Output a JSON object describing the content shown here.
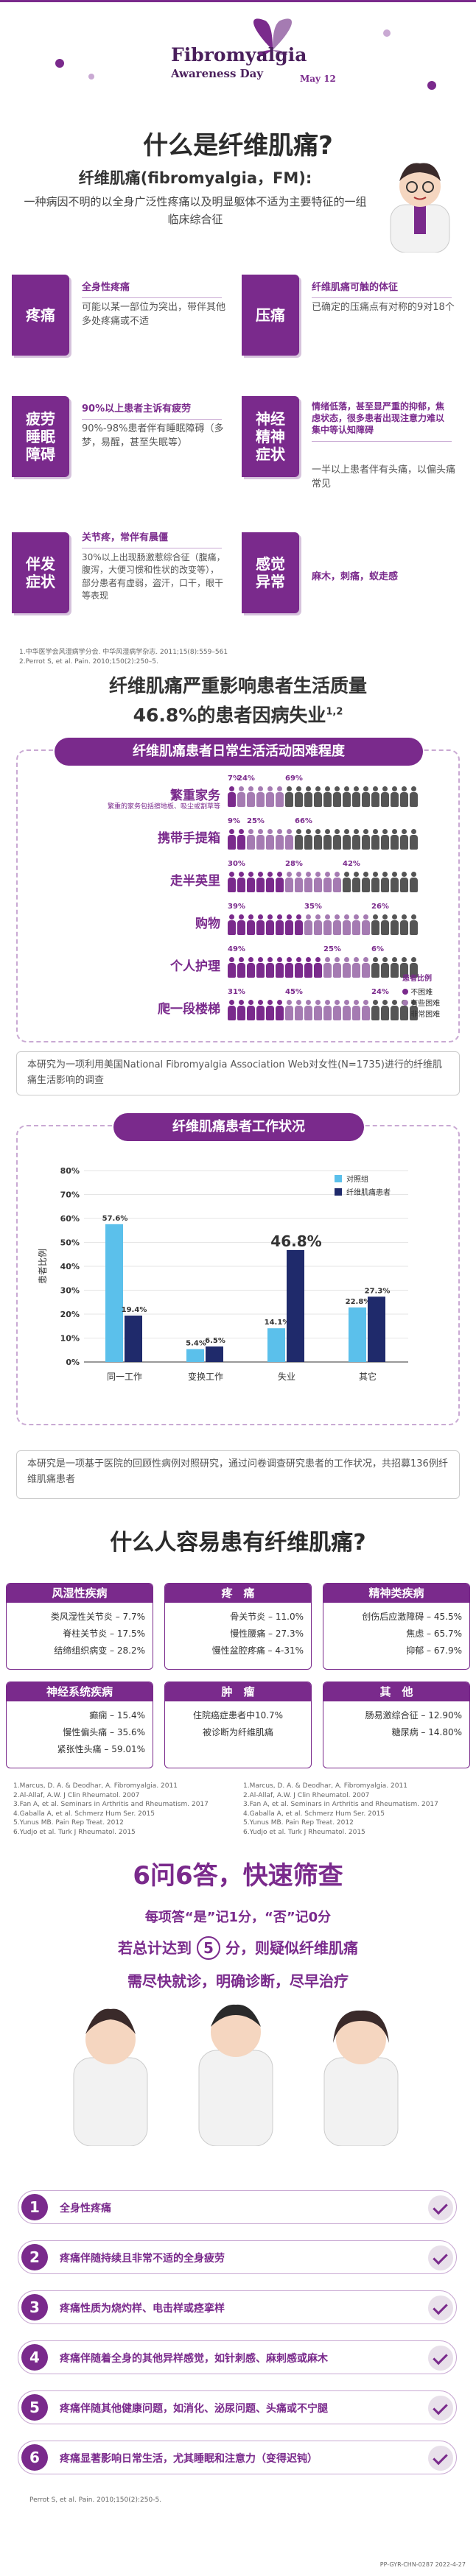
{
  "header": {
    "title": "Fibromyalgia",
    "subtitle": "Awareness Day",
    "date": "May 12"
  },
  "intro": {
    "heading": "什么是纤维肌痛?",
    "term": "纤维肌痛(fibromyalgia，FM):",
    "definition": "一种病因不明的以全身广泛性疼痛以及明显躯体不适为主要特征的一组临床综合征"
  },
  "symptoms": [
    {
      "label": "疼痛",
      "title": "全身性疼痛",
      "body": "可能以某一部位为突出，带伴其他多处疼痛或不适"
    },
    {
      "label": "压痛",
      "title": "纤维肌痛可触的体征",
      "body": "已确定的压痛点有对称的9对18个"
    },
    {
      "label": "疲劳\n睡眠\n障碍",
      "title": "90%以上患者主诉有疲劳",
      "body": "90%-98%患者伴有睡眠障碍（多梦，易醒，甚至失眠等）"
    },
    {
      "label": "神经\n精神\n症状",
      "title": "情绪低落，甚至显严重的抑郁，焦虑状态，很多患者出现注意力难以集中等认知障碍",
      "body": "一半以上患者伴有头痛，以偏头痛常见"
    },
    {
      "label": "伴发\n症状",
      "title": "关节疼，常伴有晨僵",
      "body": "30%以上出现肠激惹综合征（腹痛，腹泻，大便习惯和性状的改变等），部分患者有虚弱，盗汗，口干，眼干等表现"
    },
    {
      "label": "感觉\n异常",
      "title": "",
      "body": "麻木，刺痛，蚁走感"
    }
  ],
  "refs1": [
    "1.中华医学会风湿病学分会. 中华风湿病学杂志. 2011;15(8):559–561",
    "2.Perrot S, et al. Pain. 2010;150(2):250–5."
  ],
  "impact": {
    "headline1": "纤维肌痛严重影响患者生活质量",
    "headline2": "46.8%的患者因病失业",
    "sup": "1,2",
    "panel_title": "纤维肌痛患者日常生活活动困难程度",
    "activities": [
      {
        "name": "繁重家务",
        "note": "繁重的家务包括擦地板、吸尘或割草等",
        "v": [
          7,
          24,
          69
        ]
      },
      {
        "name": "携带手提箱",
        "note": "",
        "v": [
          9,
          25,
          66
        ]
      },
      {
        "name": "走半英里",
        "note": "",
        "v": [
          30,
          28,
          42
        ]
      },
      {
        "name": "购物",
        "note": "",
        "v": [
          39,
          35,
          26
        ]
      },
      {
        "name": "个人护理",
        "note": "",
        "v": [
          49,
          25,
          6
        ]
      },
      {
        "name": "爬一段楼梯",
        "note": "",
        "v": [
          31,
          45,
          24
        ]
      }
    ],
    "legend_title": "患者比例",
    "legend": [
      "不困难",
      "有些困难",
      "非常困难"
    ],
    "colors": [
      "#7a2a8c",
      "#a57bb2",
      "#555555"
    ],
    "note": "本研究为一项利用美国National Fibromyalgia Association Web对女性(N=1735)进行的纤维肌痛生活影响的调查"
  },
  "work": {
    "title": "纤维肌痛患者工作状况",
    "ylabel": "患者比例",
    "legend": [
      "对照组",
      "纤维肌痛患者"
    ],
    "note": "本研究是一项基于医院的回顾性病例对照研究，通过问卷调查研究患者的工作状况，共招募136例纤维肌痛患者"
  },
  "chart_data": {
    "type": "bar",
    "title": "纤维肌痛患者工作状况",
    "categories": [
      "同一工作",
      "变换工作",
      "失业",
      "其它"
    ],
    "series": [
      {
        "name": "对照组",
        "values": [
          57.6,
          5.4,
          14.1,
          22.8
        ]
      },
      {
        "name": "纤维肌痛患者",
        "values": [
          19.4,
          6.5,
          46.8,
          27.3
        ]
      }
    ],
    "ylabel": "患者比例",
    "ylim": [
      0,
      80
    ],
    "yticks": [
      "0%",
      "10%",
      "20%",
      "30%",
      "40%",
      "50%",
      "60%",
      "70%",
      "80%"
    ],
    "labels": [
      [
        "57.6%",
        "19.4%"
      ],
      [
        "5.4%",
        "6.5%"
      ],
      [
        "14.1%",
        "46.8%"
      ],
      [
        "22.8%",
        "27.3%"
      ]
    ]
  },
  "risk": {
    "heading": "什么人容易患有纤维肌痛?",
    "groups": [
      {
        "title": "风湿性疾病",
        "items": [
          "类风湿性关节炎 – 7.7%",
          "脊柱关节炎 – 17.5%",
          "结缔组织病变 – 28.2%"
        ]
      },
      {
        "title": "疼　痛",
        "items": [
          "骨关节炎 – 11.0%",
          "慢性腰痛 – 27.3%",
          "慢性盆腔疼痛 – 4-31%"
        ]
      },
      {
        "title": "精神类疾病",
        "items": [
          "创伤后应激障碍 – 45.5%",
          "焦虑 – 65.7%",
          "抑郁 – 67.9%"
        ]
      },
      {
        "title": "神经系统疾病",
        "items": [
          "癫痫 – 15.4%",
          "慢性偏头痛 – 35.6%",
          "紧张性头痛 – 59.01%"
        ]
      },
      {
        "title": "肿　瘤",
        "items": [
          "住院癌症患者中10.7%",
          "被诊断为纤维肌痛"
        ]
      },
      {
        "title": "其　他",
        "items": [
          "肠易激综合征 – 12.90%",
          "糖尿病 – 14.80%"
        ]
      }
    ],
    "refs_left": [
      "1.Marcus, D. A. & Deodhar, A. Fibromyalgia. 2011",
      "2.Al-Allaf, A.W. J Clin Rheumatol. 2007",
      "3.Fan A, et al. Seminars in Arthritis and Rheumatism. 2017",
      "4.Gaballa A, et al. Schmerz Hum Ser. 2015",
      "5.Yunus MB. Pain Rep Treat. 2012",
      "6.Yudjo et al. Turk J Rheumatol. 2015"
    ],
    "refs_right": [
      "1.Marcus, D. A. & Deodhar, A. Fibromyalgia. 2011",
      "2.Al-Allaf, A.W. J Clin Rheumatol. 2007",
      "3.Fan A, et al. Seminars in Arthritis and Rheumatism. 2017",
      "4.Gaballa A, et al. Schmerz Hum Ser. 2015",
      "5.Yunus MB. Pain Rep Treat. 2012",
      "6.Yudjo et al. Turk J Rheumatol. 2015"
    ]
  },
  "screen": {
    "heading": "6问6答，快速筛查",
    "scoring": "每项答“是”记1分，“否”记0分",
    "line2a": "若总计达到",
    "score": "5",
    "line2b": "分，则疑似纤维肌痛",
    "line3": "需尽快就诊，明确诊断，尽早治疗",
    "questions": [
      "全身性疼痛",
      "疼痛伴随持续且非常不适的全身疲劳",
      "疼痛性质为烧灼样、电击样或痉挛样",
      "疼痛伴随着全身的其他异样感觉，如针刺感、麻刺感或麻木",
      "疼痛伴随其他健康问题，如消化、泌尿问题、头痛或不宁腿",
      "疼痛显著影响日常生活，尤其睡眠和注意力（变得迟钝）"
    ],
    "ref": "Perrot S, et al. Pain. 2010;150(2):250-5.",
    "code": "PP-GYR-CHN-0287 2022-4-27"
  }
}
